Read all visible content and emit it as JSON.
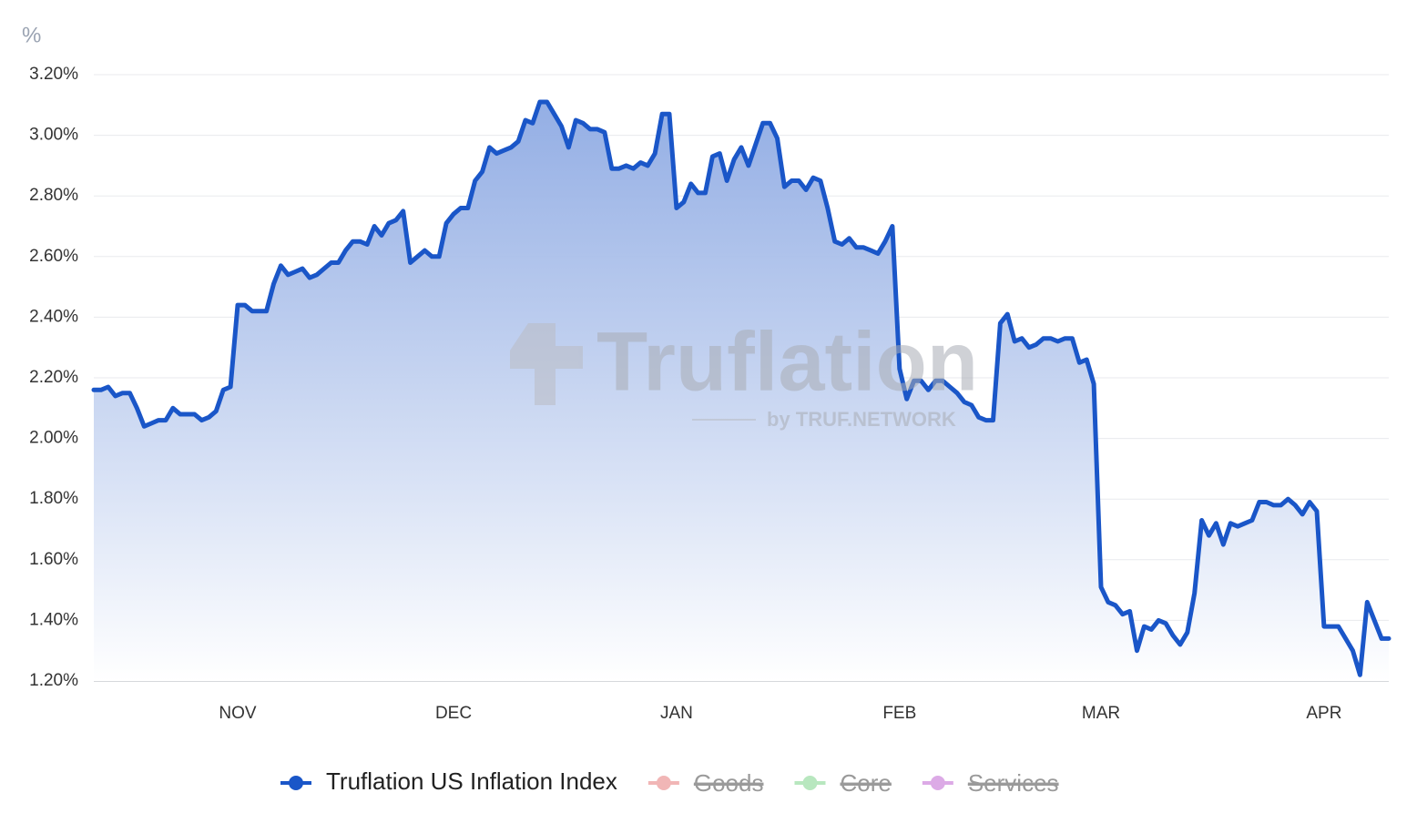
{
  "chart_data": {
    "type": "line",
    "y_unit": "%",
    "watermark": {
      "title": "Truflation",
      "subtitle": "by TRUF.NETWORK"
    },
    "categories": [
      null,
      null,
      null,
      null,
      null,
      null,
      null,
      null,
      null,
      null,
      null,
      null,
      null,
      null,
      null,
      null,
      null,
      null,
      null,
      null,
      "NOV",
      null,
      null,
      null,
      null,
      null,
      null,
      null,
      null,
      null,
      null,
      null,
      null,
      null,
      null,
      null,
      null,
      null,
      null,
      null,
      null,
      null,
      null,
      null,
      null,
      null,
      null,
      null,
      null,
      null,
      "DEC",
      null,
      null,
      null,
      null,
      null,
      null,
      null,
      null,
      null,
      null,
      null,
      null,
      null,
      null,
      null,
      null,
      null,
      null,
      null,
      null,
      null,
      null,
      null,
      null,
      null,
      null,
      null,
      null,
      null,
      null,
      "JAN",
      null,
      null,
      null,
      null,
      null,
      null,
      null,
      null,
      null,
      null,
      null,
      null,
      null,
      null,
      null,
      null,
      null,
      null,
      null,
      null,
      null,
      null,
      null,
      null,
      null,
      null,
      null,
      null,
      null,
      null,
      "FEB",
      null,
      null,
      null,
      null,
      null,
      null,
      null,
      null,
      null,
      null,
      null,
      null,
      null,
      null,
      null,
      null,
      null,
      null,
      null,
      null,
      null,
      null,
      null,
      null,
      null,
      null,
      null,
      "MAR",
      null,
      null,
      null,
      null,
      null,
      null,
      null,
      null,
      null,
      null,
      null,
      null,
      null,
      null,
      null,
      null,
      null,
      null,
      null,
      null,
      null,
      null,
      null,
      null,
      null,
      null,
      null,
      null,
      null,
      null,
      "APR",
      null,
      null,
      null,
      null,
      null,
      null,
      null,
      null,
      null
    ],
    "series": [
      {
        "name": "Truflation US Inflation Index",
        "color": "#1a56c8",
        "values": [
          2.16,
          2.16,
          2.17,
          2.14,
          2.15,
          2.15,
          2.1,
          2.04,
          2.05,
          2.06,
          2.06,
          2.1,
          2.08,
          2.08,
          2.08,
          2.06,
          2.07,
          2.09,
          2.16,
          2.17,
          2.44,
          2.44,
          2.42,
          2.42,
          2.42,
          2.51,
          2.57,
          2.54,
          2.55,
          2.56,
          2.53,
          2.54,
          2.56,
          2.58,
          2.58,
          2.62,
          2.65,
          2.65,
          2.64,
          2.7,
          2.67,
          2.71,
          2.72,
          2.75,
          2.58,
          2.6,
          2.62,
          2.6,
          2.6,
          2.71,
          2.74,
          2.76,
          2.76,
          2.85,
          2.88,
          2.96,
          2.94,
          2.95,
          2.96,
          2.98,
          3.05,
          3.04,
          3.11,
          3.11,
          3.07,
          3.03,
          2.96,
          3.05,
          3.04,
          3.02,
          3.02,
          3.01,
          2.89,
          2.89,
          2.9,
          2.89,
          2.91,
          2.9,
          2.94,
          3.07,
          3.07,
          2.76,
          2.78,
          2.84,
          2.81,
          2.81,
          2.93,
          2.94,
          2.85,
          2.92,
          2.96,
          2.9,
          2.97,
          3.04,
          3.04,
          2.99,
          2.83,
          2.85,
          2.85,
          2.82,
          2.86,
          2.85,
          2.76,
          2.65,
          2.64,
          2.66,
          2.63,
          2.63,
          2.62,
          2.61,
          2.65,
          2.7,
          2.23,
          2.13,
          2.19,
          2.19,
          2.16,
          2.19,
          2.19,
          2.17,
          2.15,
          2.12,
          2.11,
          2.07,
          2.06,
          2.06,
          2.38,
          2.41,
          2.32,
          2.33,
          2.3,
          2.31,
          2.33,
          2.33,
          2.32,
          2.33,
          2.33,
          2.25,
          2.26,
          2.18,
          1.51,
          1.46,
          1.45,
          1.42,
          1.43,
          1.3,
          1.38,
          1.37,
          1.4,
          1.39,
          1.35,
          1.32,
          1.36,
          1.49,
          1.73,
          1.68,
          1.72,
          1.65,
          1.72,
          1.71,
          1.72,
          1.73,
          1.79,
          1.79,
          1.78,
          1.78,
          1.8,
          1.78,
          1.75,
          1.79,
          1.76,
          1.38,
          1.38,
          1.38,
          1.34,
          1.3,
          1.22,
          1.46,
          1.4,
          1.34,
          1.34
        ]
      }
    ],
    "hidden_legend": [
      {
        "name": "Goods",
        "color": "#f1b6b6"
      },
      {
        "name": "Core",
        "color": "#b8e7bf"
      },
      {
        "name": "Services",
        "color": "#dcaae6"
      }
    ],
    "ylim": [
      1.2,
      3.2
    ],
    "yticks": [
      {
        "value": 1.2,
        "label": "1.20%"
      },
      {
        "value": 1.4,
        "label": "1.40%"
      },
      {
        "value": 1.6,
        "label": "1.60%"
      },
      {
        "value": 1.8,
        "label": "1.80%"
      },
      {
        "value": 2.0,
        "label": "2.00%"
      },
      {
        "value": 2.2,
        "label": "2.20%"
      },
      {
        "value": 2.4,
        "label": "2.40%"
      },
      {
        "value": 2.6,
        "label": "2.60%"
      },
      {
        "value": 2.8,
        "label": "2.80%"
      },
      {
        "value": 3.0,
        "label": "3.00%"
      },
      {
        "value": 3.2,
        "label": "3.20%"
      }
    ],
    "grid": true
  }
}
